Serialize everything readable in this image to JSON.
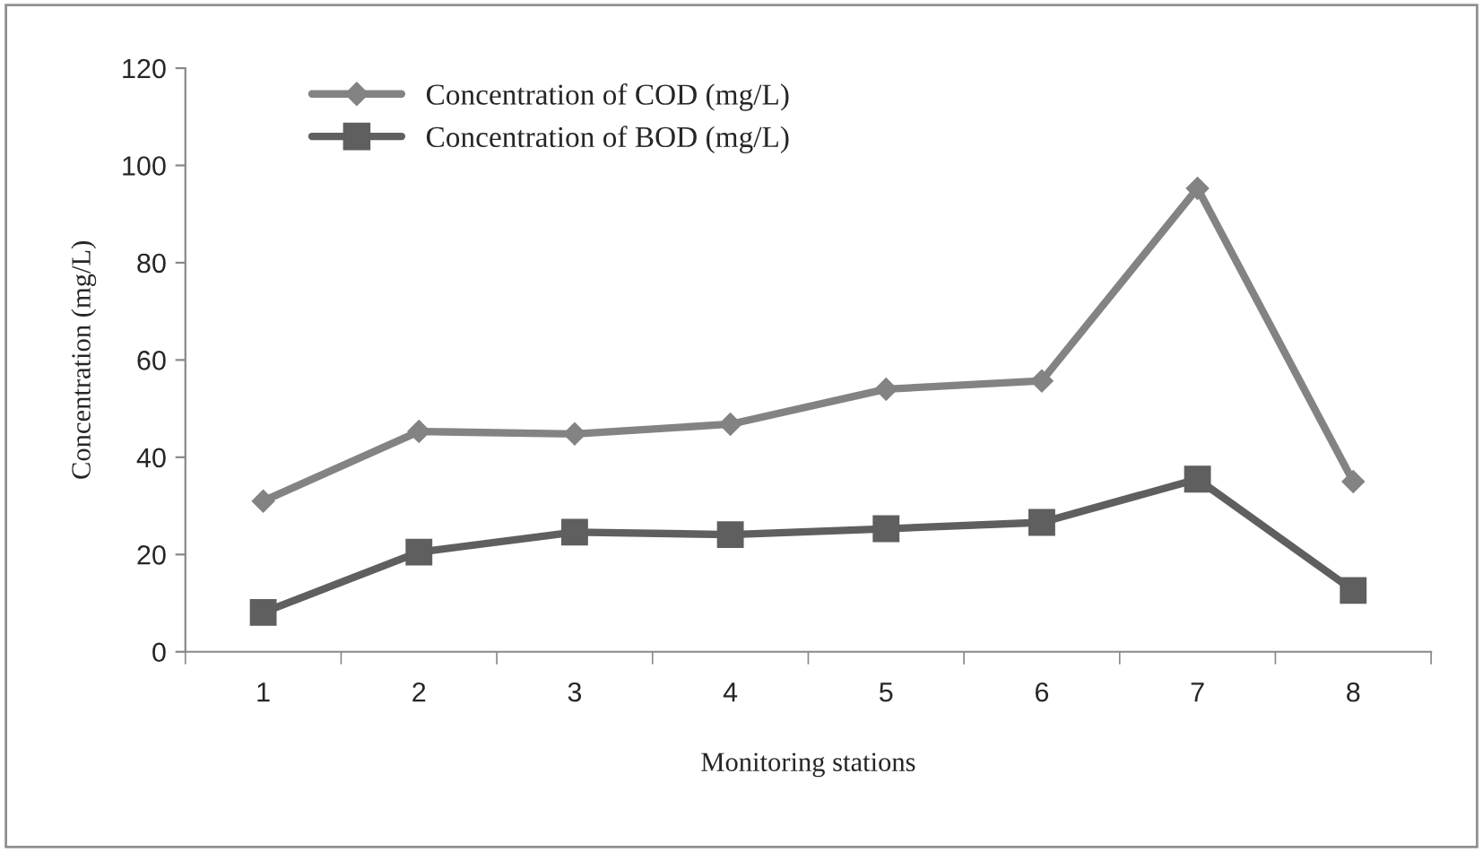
{
  "chart_data": {
    "type": "line",
    "xlabel": "Monitoring stations",
    "ylabel": "Concentration (mg/L)",
    "categories": [
      "1",
      "2",
      "3",
      "4",
      "5",
      "6",
      "7",
      "8"
    ],
    "series": [
      {
        "name": "Concentration of COD (mg/L)",
        "color": "#838383",
        "marker": "diamond",
        "values": [
          31,
          45.3,
          44.8,
          46.8,
          54,
          55.7,
          95.3,
          35
        ]
      },
      {
        "name": "Concentration of BOD (mg/L)",
        "color": "#5f5f5f",
        "marker": "square",
        "values": [
          8.1,
          20.5,
          24.6,
          24.1,
          25.3,
          26.6,
          35.5,
          12.6
        ]
      }
    ],
    "ylim": [
      0,
      120
    ],
    "yticks": [
      0,
      20,
      40,
      60,
      80,
      100,
      120
    ],
    "grid": false,
    "legend": "top left",
    "line_style": "solid"
  }
}
